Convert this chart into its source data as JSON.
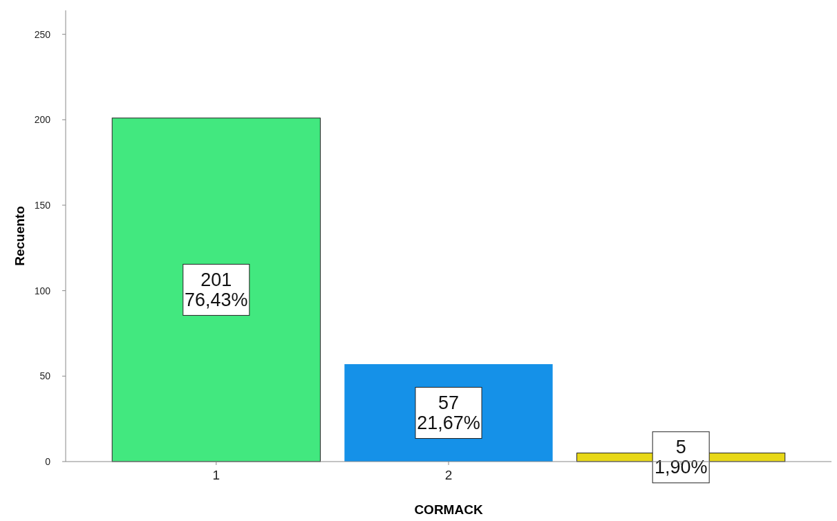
{
  "chart_data": {
    "type": "bar",
    "xlabel": "CORMACK",
    "ylabel": "Recuento",
    "categories": [
      "1",
      "2",
      null
    ],
    "values": [
      201,
      57,
      5
    ],
    "colors": [
      "#42e87f",
      "#1591e8",
      "#e8d817"
    ],
    "value_labels": [
      "201\n76,43%",
      "57\n21,67%",
      "5\n1,90%"
    ],
    "ylim": [
      0,
      264
    ],
    "yticks": [
      0,
      50,
      100,
      150,
      200,
      250
    ],
    "grid": false
  }
}
